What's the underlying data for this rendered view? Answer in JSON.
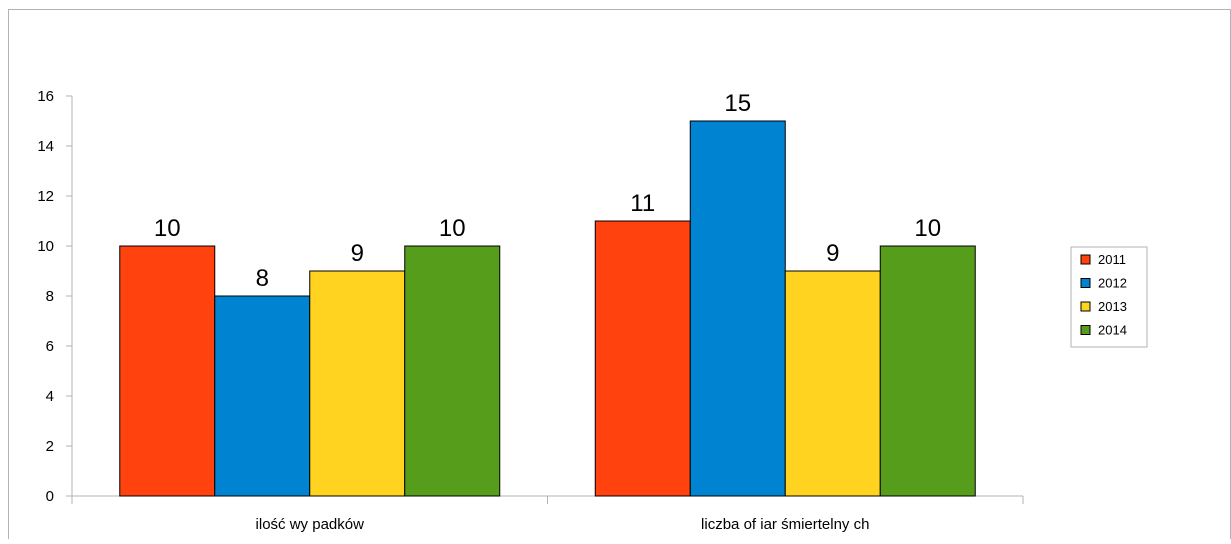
{
  "chart_data": {
    "type": "bar",
    "title": "",
    "xlabel": "",
    "ylabel": "",
    "categories": [
      "ilość wy padków",
      "liczba of iar śmiertelny ch"
    ],
    "series": [
      {
        "name": "2011",
        "values": [
          10,
          11
        ],
        "color": "#ff420e"
      },
      {
        "name": "2012",
        "values": [
          8,
          15
        ],
        "color": "#0084d1"
      },
      {
        "name": "2013",
        "values": [
          9,
          9
        ],
        "color": "#ffd320"
      },
      {
        "name": "2014",
        "values": [
          10,
          10
        ],
        "color": "#579d1c"
      }
    ],
    "ylim": [
      0,
      16
    ],
    "yticks": [
      0,
      2,
      4,
      6,
      8,
      10,
      12,
      14,
      16
    ],
    "grid": false,
    "legend": "right",
    "data_labels": true
  }
}
